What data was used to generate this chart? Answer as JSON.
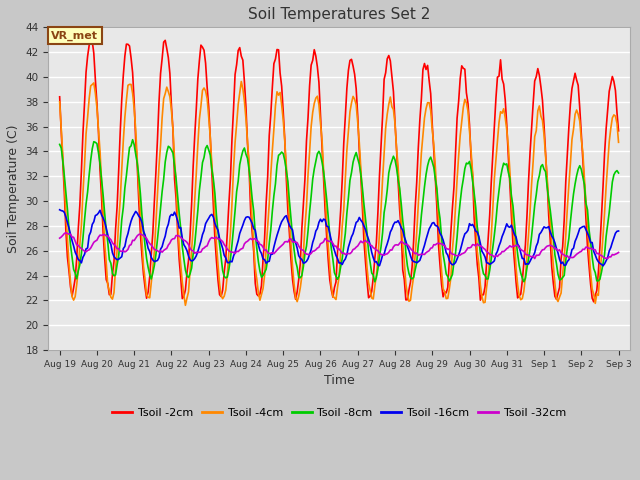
{
  "title": "Soil Temperatures Set 2",
  "xlabel": "Time",
  "ylabel": "Soil Temperature (C)",
  "ylim": [
    18,
    44
  ],
  "yticks": [
    18,
    20,
    22,
    24,
    26,
    28,
    30,
    32,
    34,
    36,
    38,
    40,
    42,
    44
  ],
  "fig_bg_color": "#c8c8c8",
  "plot_bg_color": "#e8e8e8",
  "grid_color": "#ffffff",
  "legend_labels": [
    "Tsoil -2cm",
    "Tsoil -4cm",
    "Tsoil -8cm",
    "Tsoil -16cm",
    "Tsoil -32cm"
  ],
  "legend_colors": [
    "#ff0000",
    "#ff8800",
    "#00cc00",
    "#0000ee",
    "#cc00cc"
  ],
  "annotation_text": "VR_met",
  "annotation_bg": "#ffffbb",
  "annotation_border": "#8B4513",
  "line_width": 1.2,
  "xtick_labels": [
    "Aug 19",
    "Aug 20",
    "Aug 21",
    "Aug 22",
    "Aug 23",
    "Aug 24",
    "Aug 25",
    "Aug 26",
    "Aug 27",
    "Aug 28",
    "Aug 29",
    "Aug 30",
    "Aug 31",
    "Sep 1",
    "Sep 2",
    "Sep 3"
  ],
  "peak_hour": 14,
  "hours_per_day": 24,
  "n_days": 15
}
